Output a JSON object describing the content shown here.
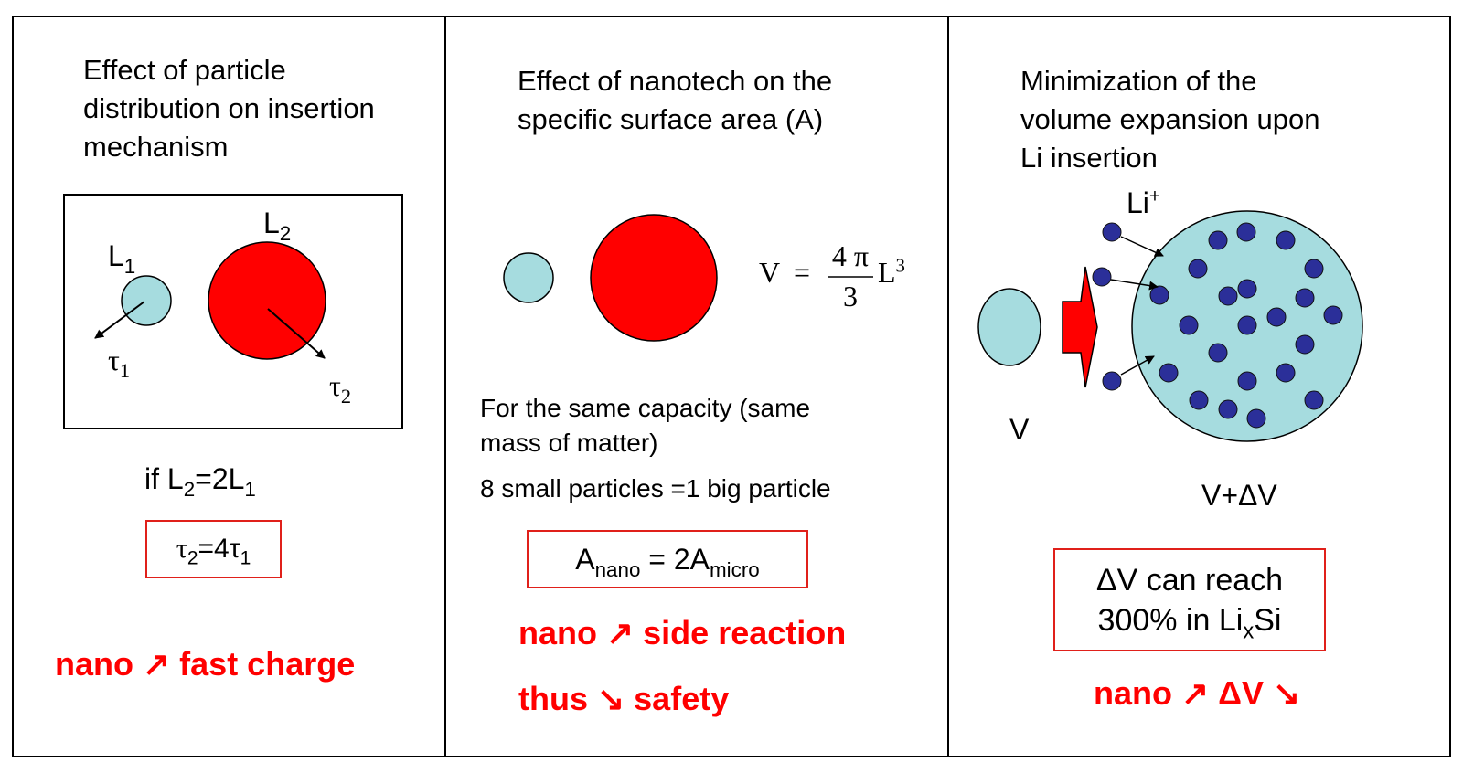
{
  "panel1": {
    "title_lines": [
      "Effect of particle",
      "distribution on insertion",
      "mechanism"
    ],
    "label_L": "L",
    "sub_1": "1",
    "sub_2": "2",
    "label_tau": "τ",
    "cond_prefix": "if L",
    "cond_mid": "=2L",
    "box_tau2": "τ",
    "box_eq": "=4τ",
    "conclusion": "nano ↗ fast charge"
  },
  "panel2": {
    "title_lines": [
      "Effect of nanotech on the",
      "specific surface area (A)"
    ],
    "formula_lhs": "V",
    "formula_eq": "=",
    "formula_num": "4 π",
    "formula_den": "3",
    "formula_L": "L",
    "formula_exp": "3",
    "capacity_lines": [
      "For the same capacity (same",
      "mass of matter)"
    ],
    "particles_text": "8 small particles =1 big particle",
    "box_A": "A",
    "box_sub_nano": "nano",
    "box_eq": " = 2A",
    "box_sub_micro": "micro",
    "conclusion_line1": "nano ↗ side reaction",
    "conclusion_line2": "thus ↘ safety"
  },
  "panel3": {
    "title_lines": [
      "Minimization of the",
      "volume expansion upon",
      "Li insertion"
    ],
    "li_ion": "Li",
    "li_ion_sup": "+",
    "label_V": "V",
    "label_VdV": "V+ΔV",
    "box_line1": "ΔV can reach",
    "box_line2_prefix": "300% in Li",
    "box_line2_sub": "x",
    "box_line2_suffix": "Si",
    "conclusion": "nano ↗ ΔV ↘"
  },
  "colors": {
    "small_particle": "#a6dcdf",
    "big_particle": "#ff0000",
    "li_dot": "#2b2f99",
    "box_border": "#e0201a",
    "accent_text": "#ff0000"
  }
}
